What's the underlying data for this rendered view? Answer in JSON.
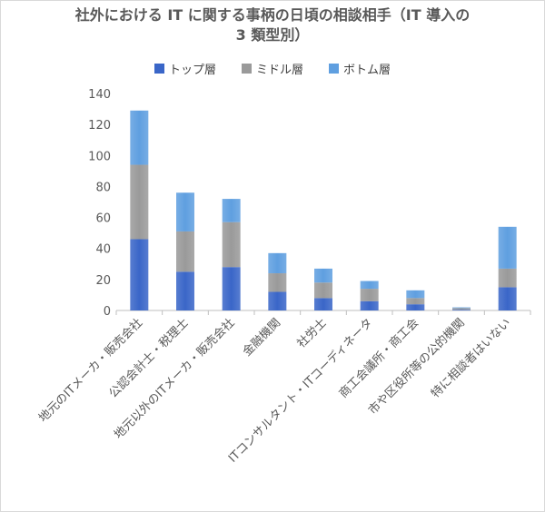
{
  "chart_data": {
    "type": "bar",
    "stacked": true,
    "title_line1": "社外における IT に関する事柄の日頃の相談相手（IT 導入の",
    "title_line2": "3 類型別）",
    "categories": [
      "地元のITメーカ・販売会社",
      "公認会計士・税理士",
      "地元以外のITメーカ・販売会社",
      "金融機関",
      "社労士",
      "ITコンサルタント・ITコーディネータ",
      "商工会議所・商工会",
      "市や区役所等の公的機関",
      "特に相談者はいない"
    ],
    "series": [
      {
        "name": "トップ層",
        "values": [
          46,
          25,
          28,
          12,
          8,
          6,
          4,
          0.5,
          15
        ],
        "color": "#3a66c8"
      },
      {
        "name": "ミドル層",
        "values": [
          48,
          26,
          29,
          12,
          10,
          8,
          4,
          1,
          12
        ],
        "color": "#9a9a9a"
      },
      {
        "name": "ボトム層",
        "values": [
          35,
          25,
          15,
          13,
          9,
          5,
          5,
          0.5,
          27
        ],
        "color": "#5f9fe0"
      }
    ],
    "ylim": [
      0,
      140
    ],
    "yticks": [
      0,
      20,
      40,
      60,
      80,
      100,
      120,
      140
    ],
    "legend_position": "top",
    "grid": false
  }
}
